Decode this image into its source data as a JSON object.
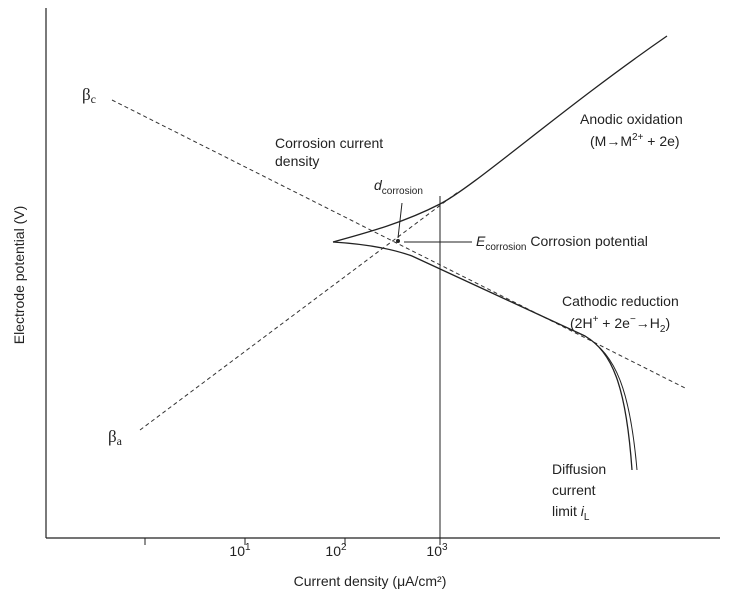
{
  "axes": {
    "y_label": "Electrode potential (V)",
    "x_label": "Current density (μA/cm²)",
    "x_ticks": [
      {
        "base": "10",
        "exp": "1"
      },
      {
        "base": "10",
        "exp": "2"
      },
      {
        "base": "10",
        "exp": "3"
      }
    ]
  },
  "labels": {
    "beta_c": {
      "main": "β",
      "sub": "c"
    },
    "beta_a": {
      "main": "β",
      "sub": "a"
    },
    "anodic": {
      "line1": "Anodic oxidation",
      "line2_a": "(M→M",
      "line2_sup": "2+",
      "line2_b": " + 2e)"
    },
    "corrosion_current_density": [
      "Corrosion current",
      "density"
    ],
    "d_corrosion": {
      "main": "d",
      "sub": "corrosion"
    },
    "e_corrosion": {
      "main": "E",
      "sub": "corrosion",
      "text": " Corrosion potential"
    },
    "cathodic": {
      "line1": "Cathodic reduction",
      "line2_a": "(2H",
      "line2_sup1": "+",
      "line2_b": " + 2e",
      "line2_sup2": "−",
      "line2_c": "→H",
      "line2_sub": "2",
      "line2_d": ")"
    },
    "diffusion": {
      "lines": [
        "Diffusion",
        "current",
        "limit "
      ],
      "i": "i",
      "sub": "L"
    }
  }
}
